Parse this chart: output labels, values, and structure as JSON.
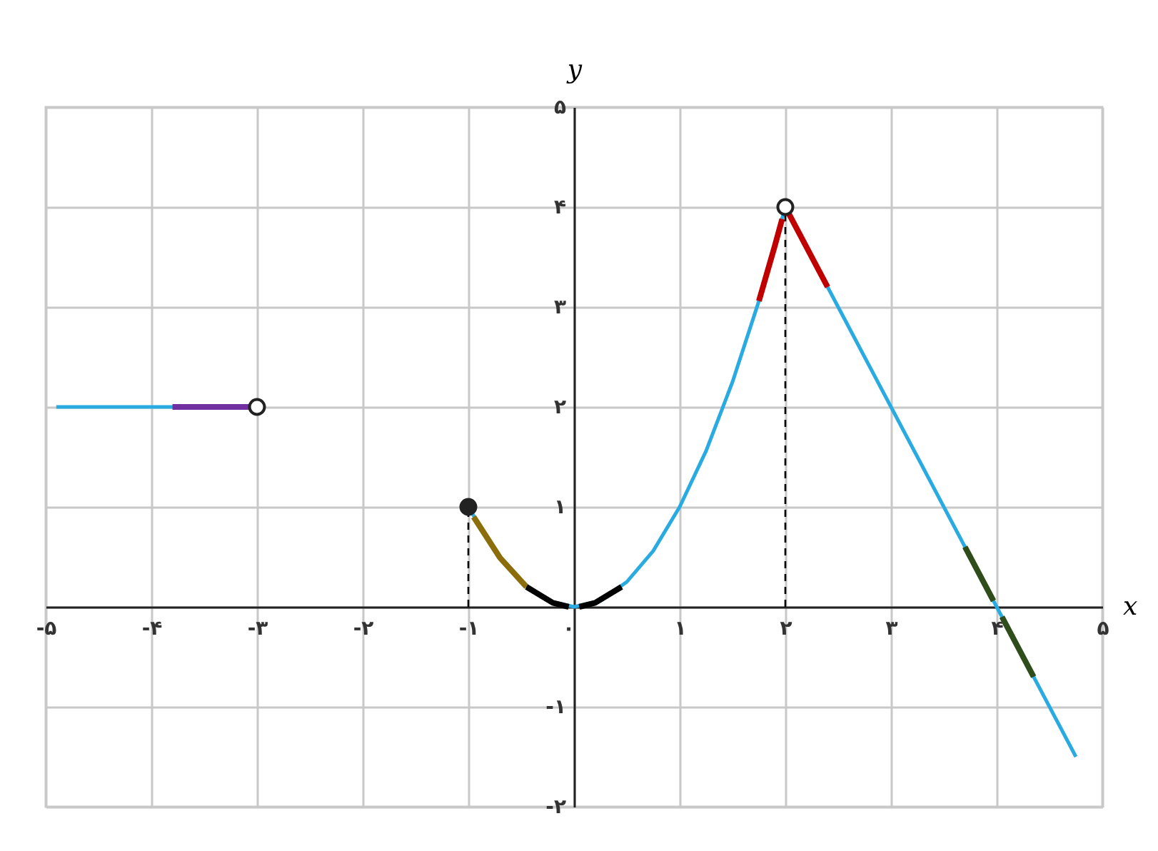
{
  "chart_data": {
    "type": "line",
    "xlabel": "x",
    "ylabel": "y",
    "xlim": [
      -5,
      5
    ],
    "ylim": [
      -2,
      5
    ],
    "xticks": [
      {
        "value": -5,
        "label": "-۵"
      },
      {
        "value": -4,
        "label": "-۴"
      },
      {
        "value": -3,
        "label": "-۳"
      },
      {
        "value": -2,
        "label": "-۲"
      },
      {
        "value": -1,
        "label": "-۱"
      },
      {
        "value": 0,
        "label": "۰"
      },
      {
        "value": 1,
        "label": "۱"
      },
      {
        "value": 2,
        "label": "۲"
      },
      {
        "value": 3,
        "label": "۳"
      },
      {
        "value": 4,
        "label": "۴"
      },
      {
        "value": 5,
        "label": "۵"
      }
    ],
    "yticks": [
      {
        "value": -2,
        "label": "-۲"
      },
      {
        "value": -1,
        "label": "-۱"
      },
      {
        "value": 0,
        "label": null
      },
      {
        "value": 1,
        "label": "۱"
      },
      {
        "value": 2,
        "label": "۲"
      },
      {
        "value": 3,
        "label": "۳"
      },
      {
        "value": 4,
        "label": "۴"
      },
      {
        "value": 5,
        "label": "۵"
      }
    ],
    "grid": true,
    "series": [
      {
        "color": "#29abe2",
        "x": [
          -4.9,
          -3
        ],
        "values": [
          2,
          2
        ]
      },
      {
        "color": "#29abe2",
        "x": [
          -1,
          -0.75,
          -0.5,
          -0.25,
          0,
          0.25,
          0.5,
          0.75,
          1,
          1.25,
          1.5,
          1.75,
          2
        ],
        "values": [
          1,
          0.56,
          0.25,
          0.06,
          0,
          0.06,
          0.25,
          0.56,
          1,
          1.56,
          2.25,
          3.06,
          4
        ]
      },
      {
        "color": "#29abe2",
        "x": [
          2,
          4.75
        ],
        "values": [
          4,
          -1.5
        ]
      },
      {
        "color": "#7030a0",
        "x": [
          -3.8,
          -3.05
        ],
        "values": [
          2,
          2
        ]
      },
      {
        "color": "#8b6d0b",
        "x": [
          -0.95,
          -0.7,
          -0.45
        ],
        "values": [
          0.9,
          0.49,
          0.2
        ]
      },
      {
        "color": "#000000",
        "x": [
          -0.45,
          -0.2,
          -0.05
        ],
        "values": [
          0.2,
          0.04,
          0
        ]
      },
      {
        "color": "#000000",
        "x": [
          0.05,
          0.2,
          0.45
        ],
        "values": [
          0,
          0.04,
          0.2
        ]
      },
      {
        "color": "#c00000",
        "x": [
          1.75,
          1.9,
          1.97
        ],
        "values": [
          3.06,
          3.61,
          3.88
        ]
      },
      {
        "color": "#c00000",
        "x": [
          2.03,
          2.4
        ],
        "values": [
          3.94,
          3.2
        ]
      },
      {
        "color": "#2e4d1a",
        "x": [
          3.7,
          3.97
        ],
        "values": [
          0.6,
          0.06
        ]
      },
      {
        "color": "#2e4d1a",
        "x": [
          4.05,
          4.35
        ],
        "values": [
          -0.1,
          -0.7
        ]
      },
      {
        "color": "#000000",
        "line_style": "dashed",
        "x": [
          -1,
          -1
        ],
        "values": [
          0,
          1
        ]
      },
      {
        "color": "#000000",
        "line_style": "dashed",
        "x": [
          2,
          2
        ],
        "values": [
          0,
          4
        ]
      },
      {
        "type": "scatter",
        "color": "#ffffff",
        "marker": "circle",
        "x": [
          -3,
          2
        ],
        "values": [
          2,
          4
        ]
      },
      {
        "type": "scatter",
        "color": "#222222",
        "marker": "circle",
        "x": [
          -1
        ],
        "values": [
          1
        ]
      }
    ]
  }
}
